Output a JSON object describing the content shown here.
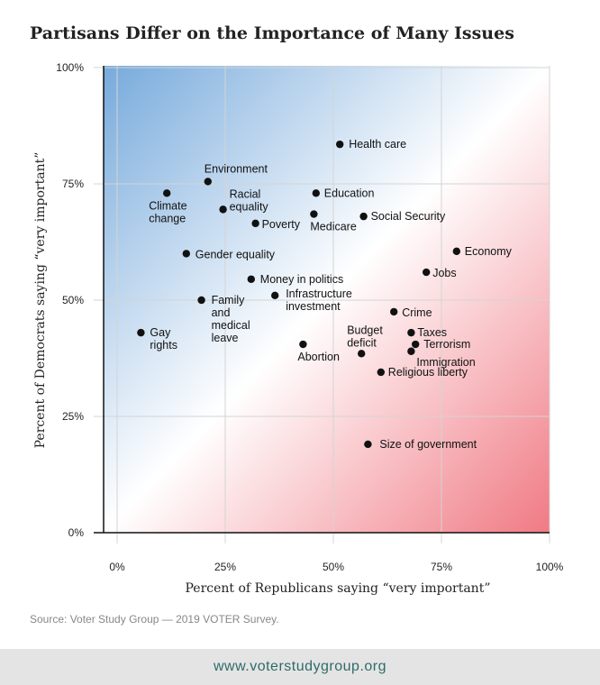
{
  "title": "Partisans Differ on the Importance of Many Issues",
  "source": "Source: Voter Study Group — 2019 VOTER Survey.",
  "footer": "www.voterstudygroup.org",
  "colors": {
    "democrat_blue": "#77aadc",
    "republican_red": "#f07a84",
    "point": "#111111"
  },
  "chart_data": {
    "type": "scatter",
    "xlabel": "Percent of Republicans saying “very important”",
    "ylabel": "Percent of Democrats saying “very important”",
    "xlim": [
      0,
      100
    ],
    "ylim": [
      0,
      100
    ],
    "x_ticks": [
      "0%",
      "25%",
      "50%",
      "75%",
      "100%"
    ],
    "y_ticks": [
      "0%",
      "25%",
      "50%",
      "75%",
      "100%"
    ],
    "grid": true,
    "points": [
      {
        "label": [
          "Health care"
        ],
        "x": 51.5,
        "y": 83.5
      },
      {
        "label": [
          "Environment"
        ],
        "x": 21,
        "y": 75.5
      },
      {
        "label": [
          "Climate",
          "change"
        ],
        "x": 11.5,
        "y": 73
      },
      {
        "label": [
          "Racial",
          "equality"
        ],
        "x": 24.5,
        "y": 69.5
      },
      {
        "label": [
          "Education"
        ],
        "x": 46,
        "y": 73
      },
      {
        "label": [
          "Poverty"
        ],
        "x": 32,
        "y": 66.5
      },
      {
        "label": [
          "Medicare"
        ],
        "x": 45.5,
        "y": 68.5
      },
      {
        "label": [
          "Social Security"
        ],
        "x": 57,
        "y": 68
      },
      {
        "label": [
          "Gender equality"
        ],
        "x": 16,
        "y": 60
      },
      {
        "label": [
          "Economy"
        ],
        "x": 78.5,
        "y": 60.5
      },
      {
        "label": [
          "Jobs"
        ],
        "x": 71.5,
        "y": 56
      },
      {
        "label": [
          "Money in politics"
        ],
        "x": 31,
        "y": 54.5
      },
      {
        "label": [
          "Infrastructure",
          "investment"
        ],
        "x": 36.5,
        "y": 51
      },
      {
        "label": [
          "Family",
          "and",
          "medical",
          "leave"
        ],
        "x": 19.5,
        "y": 50
      },
      {
        "label": [
          "Crime"
        ],
        "x": 64,
        "y": 47.5
      },
      {
        "label": [
          "Gay",
          "rights"
        ],
        "x": 5.5,
        "y": 43
      },
      {
        "label": [
          "Taxes"
        ],
        "x": 68,
        "y": 43
      },
      {
        "label": [
          "Abortion"
        ],
        "x": 43,
        "y": 40.5
      },
      {
        "label": [
          "Budget",
          "deficit"
        ],
        "x": 56.5,
        "y": 38.5
      },
      {
        "label": [
          "Terrorism"
        ],
        "x": 69,
        "y": 40.5
      },
      {
        "label": [
          "Immigration"
        ],
        "x": 68,
        "y": 39
      },
      {
        "label": [
          "Religious liberty"
        ],
        "x": 61,
        "y": 34.5
      },
      {
        "label": [
          "Size of government"
        ],
        "x": 58,
        "y": 19
      }
    ]
  }
}
